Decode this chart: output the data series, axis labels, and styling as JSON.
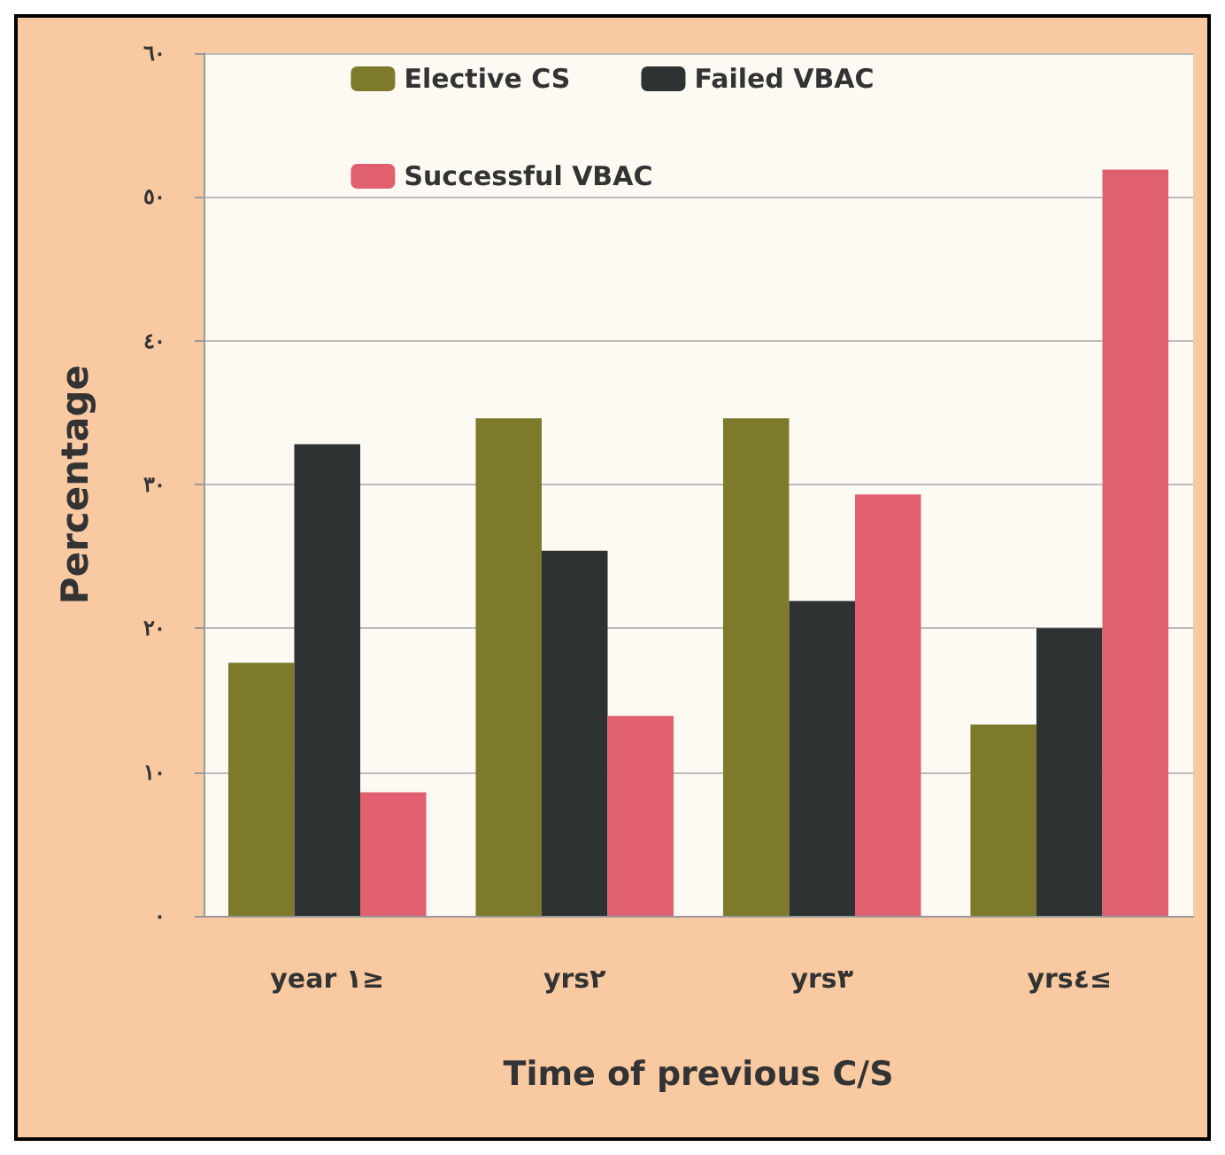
{
  "chart_data": {
    "type": "bar",
    "xlabel": "Time of previous C/S",
    "ylabel": "Percentage",
    "categories": [
      "year ١≥",
      "yrs٢",
      "yrs٣",
      "yrs٤≤"
    ],
    "series": [
      {
        "name": "Elective CS",
        "color": "#7d7a2c",
        "values": [
          17.6,
          34.6,
          34.6,
          13.3
        ]
      },
      {
        "name": "Failed VBAC",
        "color": "#2e3232",
        "values": [
          32.8,
          25.4,
          21.9,
          20
        ]
      },
      {
        "name": "Successful VBAC",
        "color": "#e06070",
        "values": [
          8.6,
          13.9,
          29.3,
          51.9
        ]
      }
    ],
    "ylim": [
      0,
      60
    ],
    "yticks": [
      {
        "value": 0,
        "label": "٠"
      },
      {
        "value": 10,
        "label": "١٠"
      },
      {
        "value": 20,
        "label": "٢٠"
      },
      {
        "value": 30,
        "label": "٣٠"
      },
      {
        "value": 40,
        "label": "٤٠"
      },
      {
        "value": 50,
        "label": "٥٠"
      },
      {
        "value": 60,
        "label": "٦٠"
      }
    ],
    "grid": "y",
    "legend": "top"
  }
}
